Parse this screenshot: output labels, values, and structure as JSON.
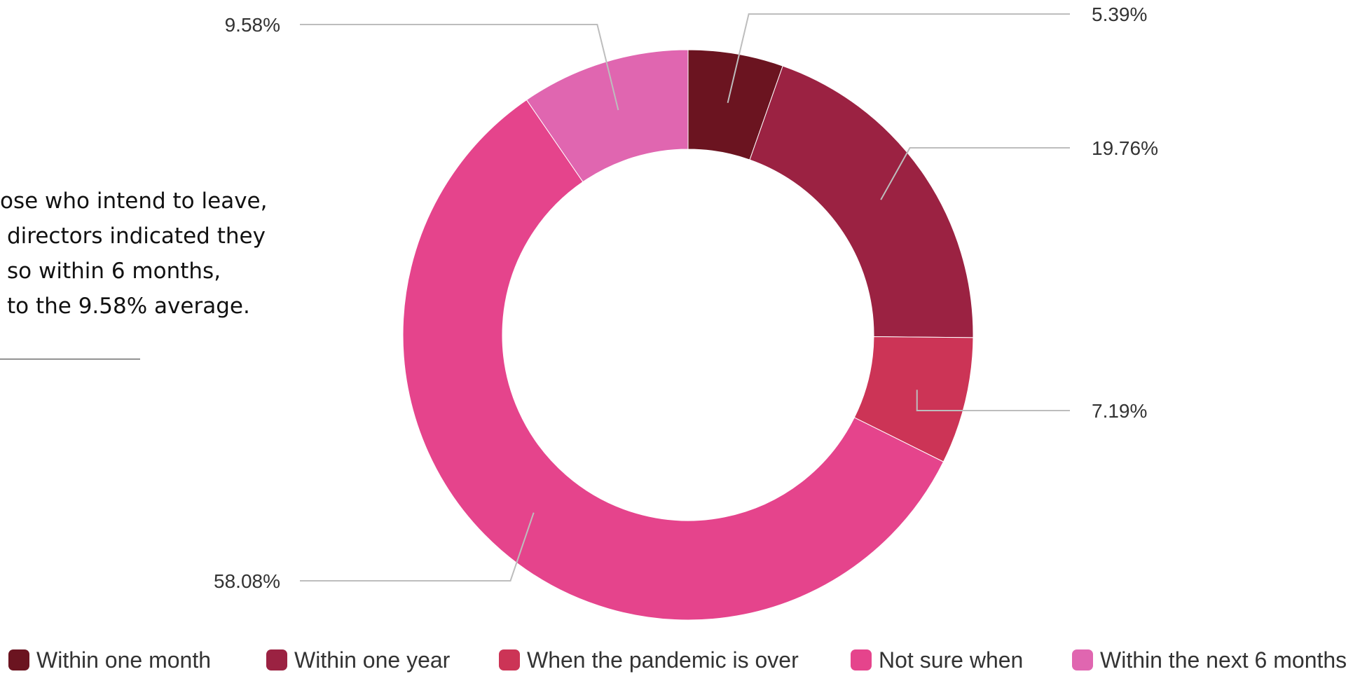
{
  "chart_data": {
    "type": "pie",
    "donut": true,
    "categories": [
      "Within one month",
      "Within one year",
      "When the pandemic is over",
      "Not sure when",
      "Within the next 6 months"
    ],
    "values": [
      5.39,
      19.76,
      7.19,
      58.08,
      9.58
    ],
    "data_labels": [
      "5.39%",
      "19.76%",
      "7.19%",
      "58.08%",
      "9.58%"
    ],
    "colors": [
      "#6b1420",
      "#9b2242",
      "#cc3456",
      "#e5448c",
      "#e066b0"
    ],
    "legend_placement": "bottom"
  },
  "note": {
    "lines": [
      "ose who intend to leave,",
      "directors indicated they",
      "so within 6 months,",
      "to the 9.58%  average."
    ]
  }
}
